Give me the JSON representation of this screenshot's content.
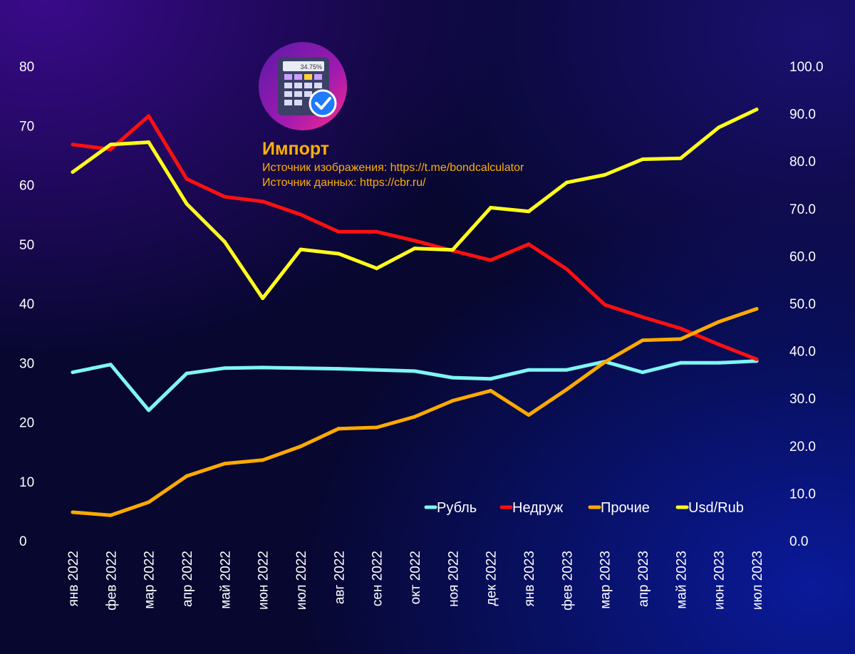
{
  "header": {
    "title": "Импорт",
    "source_image": "Источник изображения: https://t.me/bondcalculator",
    "source_data": "Источник данных: https://cbr.ru/",
    "logo_text": "34.75%"
  },
  "colors": {
    "Рубль": "#7ff5f5",
    "Недруж": "#ff1010",
    "Прочие": "#ffaa00",
    "Usd/Rub": "#ffff1a"
  },
  "icons": [
    "calculator-logo-icon",
    "verified-check-icon"
  ],
  "chart_data": {
    "type": "line",
    "categories": [
      "янв 2022",
      "фев 2022",
      "мар 2022",
      "апр 2022",
      "май 2022",
      "июн 2022",
      "июл 2022",
      "авг 2022",
      "сен 2022",
      "окт 2022",
      "ноя 2022",
      "дек 2022",
      "янв 2023",
      "фев 2023",
      "мар 2023",
      "апр 2023",
      "май 2023",
      "июн 2023",
      "июл 2023"
    ],
    "y_left": {
      "ylim": [
        0,
        80
      ],
      "ticks": [
        "0",
        "10",
        "20",
        "30",
        "40",
        "50",
        "60",
        "70",
        "80"
      ]
    },
    "y_right": {
      "ylim": [
        0,
        100
      ],
      "ticks": [
        "0.0",
        "10.0",
        "20.0",
        "30.0",
        "40.0",
        "50.0",
        "60.0",
        "70.0",
        "80.0",
        "90.0",
        "100.0"
      ]
    },
    "legend_position": "bottom-right",
    "grid": false,
    "series": [
      {
        "name": "Рубль",
        "axis": "left",
        "values": [
          28.4,
          29.7,
          22.0,
          28.2,
          29.1,
          29.2,
          29.1,
          29.0,
          28.8,
          28.6,
          27.5,
          27.3,
          28.8,
          28.8,
          30.2,
          28.4,
          30.0,
          30.0,
          30.3
        ]
      },
      {
        "name": "Недруж",
        "axis": "left",
        "values": [
          66.8,
          66.0,
          71.6,
          61.0,
          58.0,
          57.2,
          55.0,
          52.1,
          52.1,
          50.6,
          48.9,
          47.3,
          50.0,
          45.8,
          39.8,
          37.7,
          35.8,
          33.1,
          30.6
        ]
      },
      {
        "name": "Прочие",
        "axis": "left",
        "values": [
          4.8,
          4.3,
          6.5,
          10.9,
          13.0,
          13.6,
          15.9,
          18.9,
          19.1,
          20.9,
          23.6,
          25.3,
          21.2,
          25.5,
          30.1,
          33.8,
          34.0,
          36.9,
          39.1
        ]
      },
      {
        "name": "Usd/Rub",
        "axis": "right",
        "values": [
          77.7,
          83.5,
          84.0,
          71.0,
          63.0,
          51.1,
          61.4,
          60.5,
          57.4,
          61.6,
          61.3,
          70.2,
          69.4,
          75.5,
          77.1,
          80.4,
          80.6,
          87.1,
          90.9
        ]
      }
    ]
  }
}
